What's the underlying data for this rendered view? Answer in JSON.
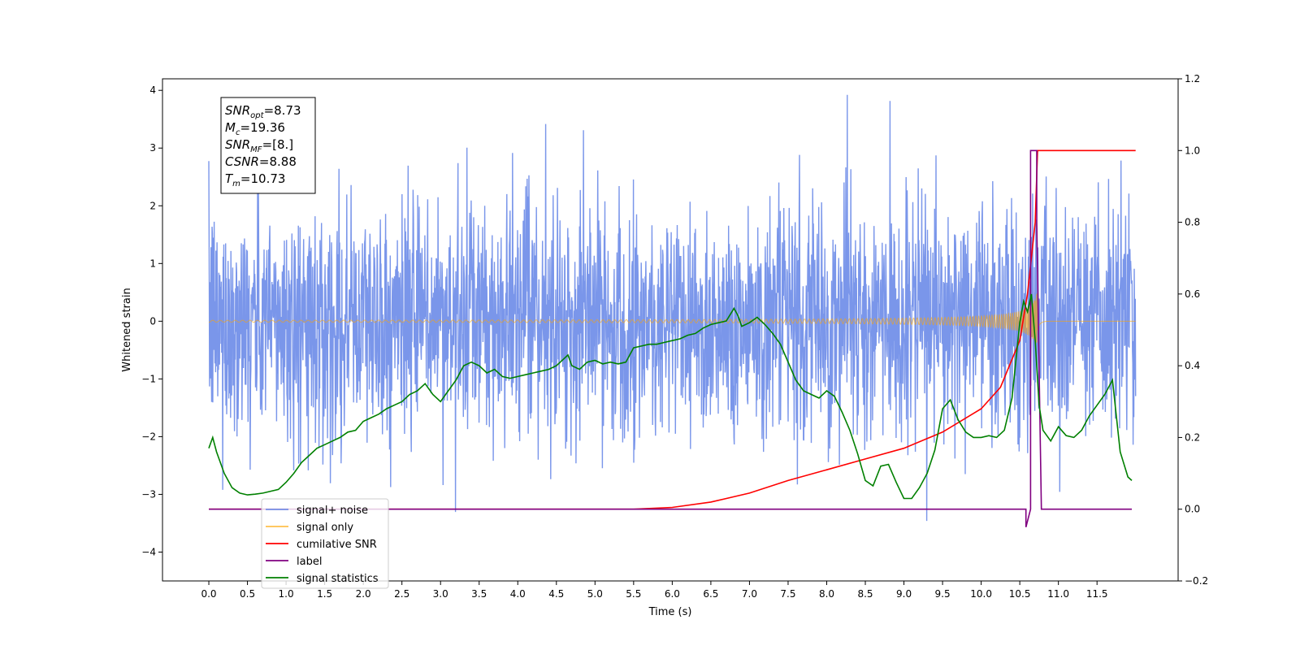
{
  "chart_data": {
    "type": "line",
    "xlabel": "Time (s)",
    "ylabel_left": "Whitened strain",
    "ylabel_right": "",
    "xlim": [
      -0.6,
      12.55
    ],
    "ylim_left": [
      -4.5,
      4.2
    ],
    "ylim_right": [
      -0.2,
      1.2
    ],
    "x_ticks": [
      "0.0",
      "0.5",
      "1.0",
      "1.5",
      "2.0",
      "2.5",
      "3.0",
      "3.5",
      "4.0",
      "4.5",
      "5.0",
      "5.5",
      "6.0",
      "6.5",
      "7.0",
      "7.5",
      "8.0",
      "8.5",
      "9.0",
      "9.5",
      "10.0",
      "10.5",
      "11.0",
      "11.5"
    ],
    "y_ticks_left": [
      "4",
      "3",
      "2",
      "1",
      "0",
      "−1",
      "−2",
      "−3",
      "−4"
    ],
    "y_ticks_right": [
      "1.2",
      "1.0",
      "0.8",
      "0.6",
      "0.4",
      "0.2",
      "0.0",
      "−0.2"
    ],
    "grid": false,
    "legend_position": "lower-left",
    "annotation": [
      {
        "base": "SNR",
        "sub": "opt",
        "value": "=8.73"
      },
      {
        "base": "M",
        "sub": "c",
        "value": "=19.36"
      },
      {
        "base": "SNR",
        "sub": "MF",
        "value": "=[8.]"
      },
      {
        "base": "CSNR",
        "sub": "",
        "value": "=8.88"
      },
      {
        "base": "T",
        "sub": "m",
        "value": "=10.73"
      }
    ],
    "series": [
      {
        "name": "signal+ noise",
        "color": "#4169e1",
        "axis": "left",
        "noise_sigma": 1.0,
        "x_range": [
          0.0,
          12.0
        ]
      },
      {
        "name": "signal only",
        "color": "#ffa500",
        "axis": "left",
        "peak_time": 10.73,
        "peak_amplitude": 0.55
      },
      {
        "name": "cumilative SNR",
        "color": "#ff0000",
        "axis": "right",
        "x": [
          0.0,
          5.5,
          6.0,
          6.5,
          7.0,
          7.5,
          8.0,
          8.5,
          9.0,
          9.5,
          10.0,
          10.25,
          10.5,
          10.6,
          10.7,
          10.73,
          12.0
        ],
        "y": [
          0.0,
          0.0,
          0.005,
          0.02,
          0.045,
          0.08,
          0.11,
          0.14,
          0.17,
          0.215,
          0.28,
          0.34,
          0.47,
          0.6,
          0.8,
          1.0,
          1.0
        ]
      },
      {
        "name": "label",
        "color": "#800080",
        "axis": "right",
        "x": [
          0.0,
          10.58,
          10.58,
          10.64,
          10.64,
          10.72,
          10.72,
          10.78,
          10.78,
          11.95
        ],
        "y": [
          0.0,
          0.0,
          -0.05,
          0.0,
          1.0,
          1.0,
          0.8,
          0.0,
          0.0,
          0.0
        ]
      },
      {
        "name": "signal statistics",
        "color": "#008000",
        "axis": "right",
        "x": [
          0.0,
          0.05,
          0.1,
          0.2,
          0.3,
          0.4,
          0.5,
          0.6,
          0.7,
          0.8,
          0.9,
          1.0,
          1.1,
          1.2,
          1.3,
          1.4,
          1.5,
          1.6,
          1.7,
          1.8,
          1.9,
          2.0,
          2.1,
          2.2,
          2.3,
          2.4,
          2.5,
          2.6,
          2.7,
          2.8,
          2.9,
          3.0,
          3.1,
          3.2,
          3.3,
          3.4,
          3.5,
          3.6,
          3.7,
          3.8,
          3.9,
          4.0,
          4.1,
          4.2,
          4.3,
          4.4,
          4.5,
          4.6,
          4.65,
          4.7,
          4.8,
          4.9,
          5.0,
          5.1,
          5.2,
          5.3,
          5.4,
          5.5,
          5.6,
          5.7,
          5.8,
          5.9,
          6.0,
          6.1,
          6.2,
          6.3,
          6.4,
          6.5,
          6.6,
          6.7,
          6.8,
          6.85,
          6.9,
          7.0,
          7.1,
          7.2,
          7.3,
          7.4,
          7.5,
          7.6,
          7.7,
          7.8,
          7.9,
          8.0,
          8.1,
          8.2,
          8.3,
          8.4,
          8.5,
          8.6,
          8.7,
          8.8,
          8.9,
          9.0,
          9.1,
          9.2,
          9.3,
          9.4,
          9.5,
          9.6,
          9.7,
          9.8,
          9.9,
          10.0,
          10.1,
          10.2,
          10.3,
          10.4,
          10.5,
          10.55,
          10.6,
          10.65,
          10.7,
          10.75,
          10.8,
          10.9,
          11.0,
          11.1,
          11.2,
          11.3,
          11.4,
          11.5,
          11.6,
          11.7,
          11.8,
          11.9,
          11.95
        ],
        "y": [
          0.17,
          0.2,
          0.16,
          0.1,
          0.06,
          0.045,
          0.04,
          0.042,
          0.045,
          0.05,
          0.055,
          0.075,
          0.1,
          0.13,
          0.15,
          0.17,
          0.18,
          0.19,
          0.2,
          0.215,
          0.22,
          0.245,
          0.255,
          0.265,
          0.28,
          0.29,
          0.3,
          0.32,
          0.33,
          0.35,
          0.32,
          0.3,
          0.33,
          0.36,
          0.4,
          0.41,
          0.4,
          0.38,
          0.39,
          0.37,
          0.365,
          0.37,
          0.375,
          0.38,
          0.385,
          0.39,
          0.4,
          0.42,
          0.43,
          0.4,
          0.39,
          0.41,
          0.415,
          0.405,
          0.41,
          0.405,
          0.41,
          0.45,
          0.455,
          0.46,
          0.46,
          0.465,
          0.47,
          0.475,
          0.485,
          0.49,
          0.505,
          0.515,
          0.52,
          0.525,
          0.56,
          0.54,
          0.51,
          0.52,
          0.535,
          0.515,
          0.49,
          0.46,
          0.41,
          0.36,
          0.33,
          0.32,
          0.31,
          0.33,
          0.315,
          0.27,
          0.22,
          0.155,
          0.08,
          0.065,
          0.12,
          0.125,
          0.075,
          0.03,
          0.03,
          0.06,
          0.1,
          0.165,
          0.28,
          0.305,
          0.25,
          0.215,
          0.2,
          0.2,
          0.205,
          0.2,
          0.22,
          0.31,
          0.52,
          0.58,
          0.55,
          0.6,
          0.47,
          0.29,
          0.22,
          0.19,
          0.23,
          0.205,
          0.2,
          0.22,
          0.26,
          0.29,
          0.32,
          0.36,
          0.16,
          0.09,
          0.08
        ]
      }
    ]
  }
}
